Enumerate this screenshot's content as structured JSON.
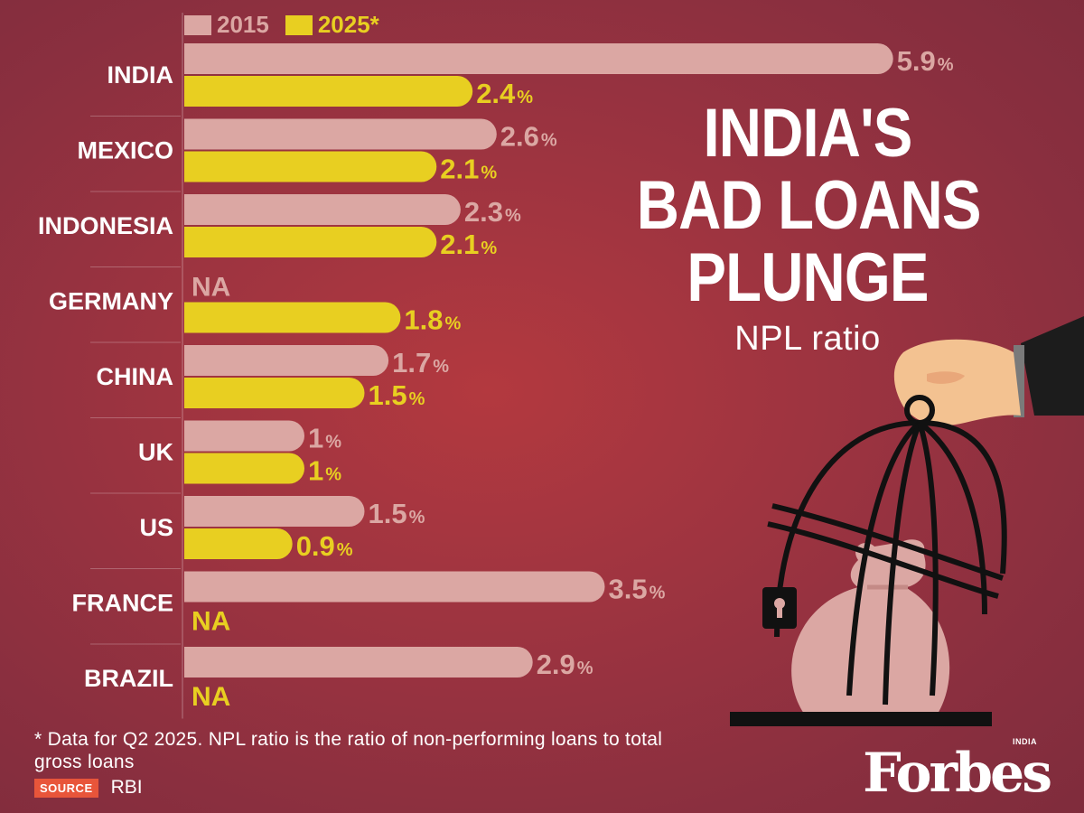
{
  "title_lines": [
    "INDIA'S",
    "BAD LOANS",
    "PLUNGE"
  ],
  "subtitle": "NPL ratio",
  "legend": [
    {
      "label": "2015",
      "color": "#dba7a3"
    },
    {
      "label": "2025*",
      "color": "#e8cf21"
    }
  ],
  "colors": {
    "bar_2015": "#dba7a3",
    "bar_2025": "#e8cf21",
    "label_2015": "#dba7a3",
    "label_2025": "#e8cf21"
  },
  "footnote": "* Data for Q2 2025. NPL ratio is the ratio of non-performing loans to total gross loans",
  "source_label": "SOURCE",
  "source_value": "RBI",
  "brand": "Forbes",
  "brand_sub": "INDIA",
  "na_text": "NA",
  "chart_data": {
    "type": "bar",
    "orientation": "horizontal",
    "categories": [
      "INDIA",
      "MEXICO",
      "INDONESIA",
      "GERMANY",
      "CHINA",
      "UK",
      "US",
      "FRANCE",
      "BRAZIL"
    ],
    "series": [
      {
        "name": "2015",
        "values": [
          5.9,
          2.6,
          2.3,
          null,
          1.7,
          1,
          1.5,
          3.5,
          2.9
        ],
        "labels": [
          "5.9",
          "2.6",
          "2.3",
          "NA",
          "1.7",
          "1",
          "1.5",
          "3.5",
          "2.9"
        ]
      },
      {
        "name": "2025*",
        "values": [
          2.4,
          2.1,
          2.1,
          1.8,
          1.5,
          1,
          0.9,
          null,
          null
        ],
        "labels": [
          "2.4",
          "2.1",
          "2.1",
          "1.8",
          "1.5",
          "1",
          "0.9",
          "NA",
          "NA"
        ]
      }
    ],
    "unit": "%",
    "xlim": [
      0,
      5.9
    ],
    "legend_position": "top-left"
  }
}
